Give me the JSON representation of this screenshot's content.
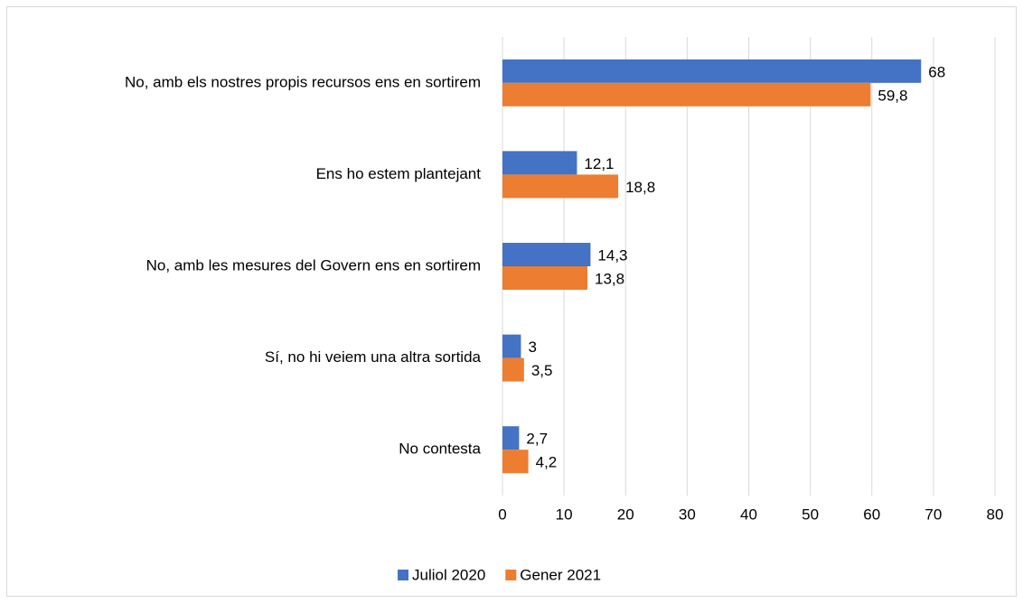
{
  "chart_data": {
    "type": "hbar",
    "categories": [
      "No, amb els nostres propis recursos ens en sortirem",
      "Ens ho estem plantejant",
      "No, amb les mesures del Govern ens en sortirem",
      "Sí, no hi veiem una altra sortida",
      "No contesta"
    ],
    "series": [
      {
        "name": "Juliol 2020",
        "color": "#4472c4",
        "values": [
          68,
          12.1,
          14.3,
          3,
          2.7
        ],
        "value_labels": [
          "68",
          "12,1",
          "14,3",
          "3",
          "2,7"
        ]
      },
      {
        "name": "Gener 2021",
        "color": "#ed7d31",
        "values": [
          59.8,
          18.8,
          13.8,
          3.5,
          4.2
        ],
        "value_labels": [
          "59,8",
          "18,8",
          "13,8",
          "3,5",
          "4,2"
        ]
      }
    ],
    "xlim": [
      0,
      80
    ],
    "xticks": [
      0,
      10,
      20,
      30,
      40,
      50,
      60,
      70,
      80
    ],
    "grid": true,
    "legend": "bottom"
  }
}
